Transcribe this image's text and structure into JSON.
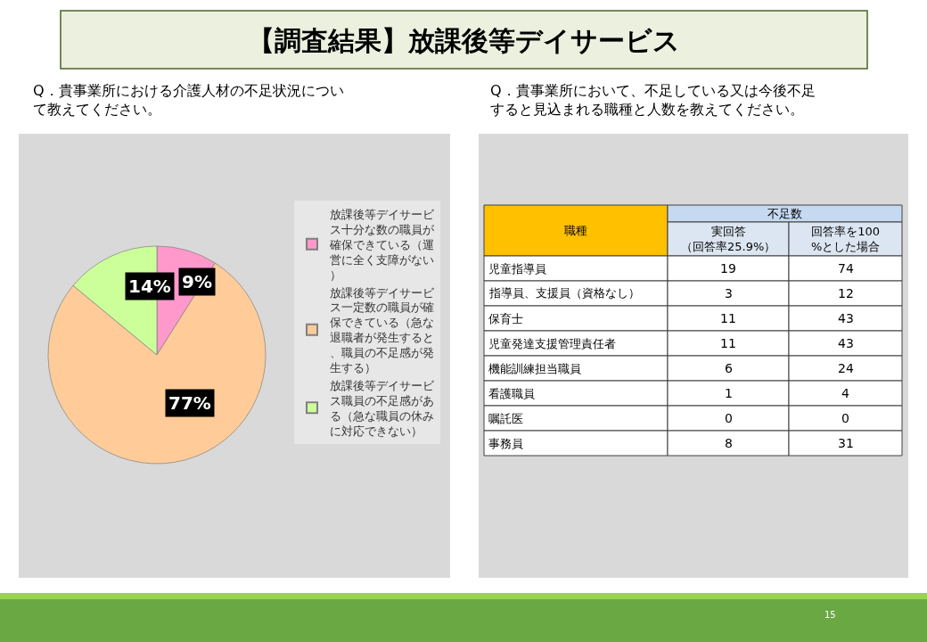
{
  "chart_data": [
    {
      "type": "pie",
      "title": "Q．貴事業所における介護人材の不足状況について教えてください。",
      "categories": [
        "放課後等デイサービス十分な数の職員が確保できている（運営に全く支障がない）",
        "放課後等デイサービス一定数の職員が確保できている（急な退職者が発生すると、職員の不足感が発生する）",
        "放課後等デイサービス職員の不足感がある（急な職員の休みに対応できない）"
      ],
      "values": [
        9,
        77,
        14
      ],
      "value_labels": [
        "9%",
        "77%",
        "14%"
      ],
      "colors": [
        "#ff99cc",
        "#ffcc99",
        "#ccff99"
      ],
      "legend": "right",
      "annotations": [
        "【調査結果】放課後等デイサービス"
      ]
    },
    {
      "type": "other",
      "title": "Q．貴事業所において、不足している又は今後不足すると見込まれる職種と人数を教えてください。",
      "xlabel": "職種",
      "legend_title": "不足数",
      "categories": [
        "児童指導員",
        "指導員、支援員（資格なし）",
        "保育士",
        "児童発達支援管理責任者",
        "機能訓練担当職員",
        "看護職員",
        "嘱託医",
        "事務員"
      ],
      "series": [
        {
          "name": "実回答（回答率25.9%）",
          "values": [
            19,
            3,
            11,
            11,
            6,
            1,
            0,
            8
          ]
        },
        {
          "name": "回答率を100%とした場合",
          "values": [
            74,
            12,
            43,
            43,
            24,
            4,
            0,
            31
          ]
        }
      ],
      "data_labels": true,
      "annotations": [
        "15"
      ]
    }
  ]
}
